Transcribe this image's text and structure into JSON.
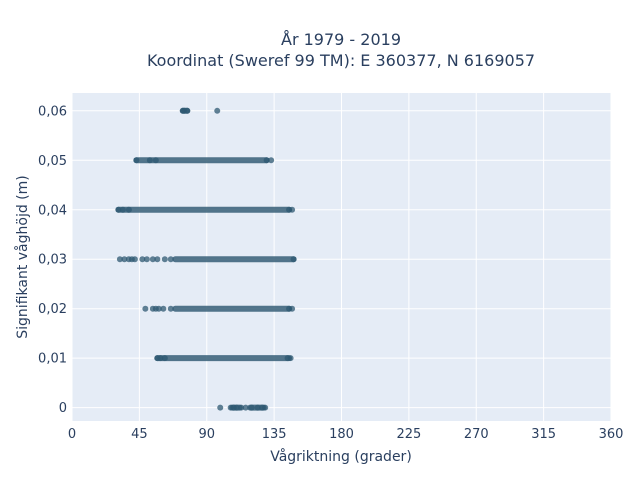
{
  "chart_data": {
    "type": "scatter",
    "title": [
      "År 1979 - 2019",
      "Koordinat (Sweref 99 TM): E 360377, N 6169057"
    ],
    "xlabel": "Vågriktning (grader)",
    "ylabel": "Signifikant våghöjd (m)",
    "xlim": [
      0,
      360
    ],
    "ylim": [
      -0.0027,
      0.0636
    ],
    "xticks": [
      0,
      45,
      90,
      135,
      180,
      225,
      270,
      315,
      360
    ],
    "xtick_labels": [
      "0",
      "45",
      "90",
      "135",
      "180",
      "225",
      "270",
      "315",
      "360"
    ],
    "yticks": [
      0,
      0.01,
      0.02,
      0.03,
      0.04,
      0.05,
      0.06
    ],
    "ytick_labels": [
      "0",
      "0,01",
      "0,02",
      "0,03",
      "0,04",
      "0,05",
      "0,06"
    ],
    "grid": true,
    "marker_color": "#2e5872",
    "plot_bg": "#e5ecf6",
    "bands": [
      {
        "y": 0.06,
        "segments": [
          [
            74,
            77
          ]
        ],
        "points": [
          74,
          75,
          77,
          97
        ]
      },
      {
        "y": 0.05,
        "segments": [
          [
            43,
            130
          ]
        ],
        "points": [
          43,
          52,
          56,
          130,
          133
        ]
      },
      {
        "y": 0.04,
        "segments": [
          [
            31,
            145
          ]
        ],
        "points": [
          31,
          34,
          38,
          145,
          147
        ]
      },
      {
        "y": 0.03,
        "segments": [
          [
            69,
            148
          ]
        ],
        "points": [
          32,
          35,
          38,
          40,
          42,
          47,
          50,
          54,
          57,
          62,
          66,
          148
        ]
      },
      {
        "y": 0.02,
        "segments": [
          [
            69,
            145
          ]
        ],
        "points": [
          49,
          54,
          56,
          58,
          61,
          66,
          145,
          147
        ]
      },
      {
        "y": 0.01,
        "segments": [
          [
            57,
            145
          ]
        ],
        "points": [
          57,
          59,
          62,
          144,
          146
        ]
      },
      {
        "y": 0.0,
        "segments": [
          [
            107,
            112
          ],
          [
            119,
            128
          ]
        ],
        "points": [
          99,
          106,
          108,
          110,
          113,
          116,
          120,
          124,
          127,
          129
        ]
      }
    ]
  }
}
